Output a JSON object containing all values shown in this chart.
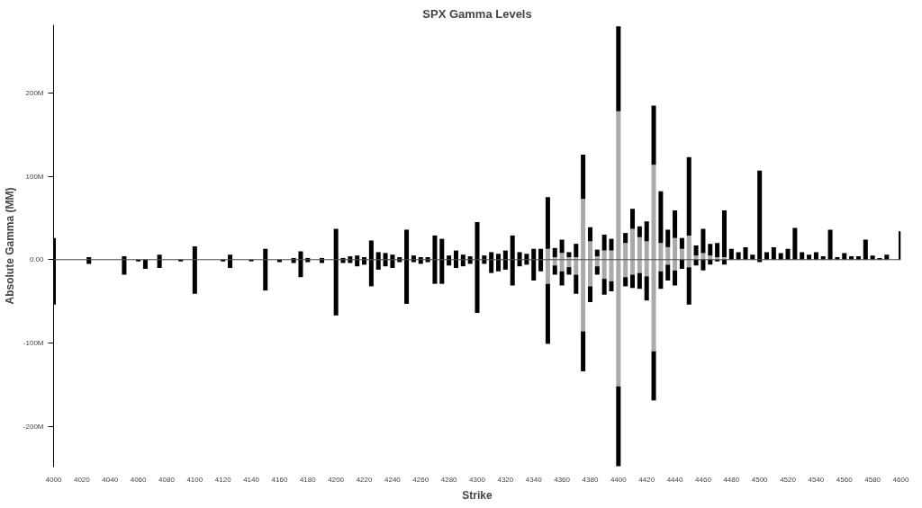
{
  "chart_data": {
    "type": "bar",
    "title": "SPX Gamma Levels",
    "xlabel": "Strike",
    "ylabel": "Absolute Gamma (MM)",
    "stacked": true,
    "grid": false,
    "x": [
      4000,
      4025,
      4050,
      4060,
      4065,
      4075,
      4090,
      4100,
      4120,
      4125,
      4140,
      4150,
      4160,
      4165,
      4170,
      4175,
      4180,
      4190,
      4200,
      4205,
      4210,
      4215,
      4220,
      4225,
      4230,
      4235,
      4240,
      4245,
      4250,
      4255,
      4260,
      4265,
      4270,
      4275,
      4280,
      4285,
      4290,
      4295,
      4300,
      4305,
      4310,
      4315,
      4320,
      4325,
      4330,
      4335,
      4340,
      4345,
      4350,
      4355,
      4360,
      4365,
      4370,
      4375,
      4380,
      4385,
      4390,
      4395,
      4400,
      4405,
      4410,
      4415,
      4420,
      4425,
      4430,
      4435,
      4440,
      4445,
      4450,
      4455,
      4460,
      4465,
      4470,
      4475,
      4480,
      4485,
      4490,
      4495,
      4500,
      4505,
      4510,
      4515,
      4520,
      4525,
      4530,
      4535,
      4540,
      4545,
      4550,
      4555,
      4560,
      4565,
      4570,
      4575,
      4580,
      4585,
      4590,
      4600
    ],
    "series": [
      {
        "color": "#aaaaaa",
        "values": [
          null,
          null,
          null,
          null,
          null,
          null,
          null,
          null,
          null,
          null,
          null,
          null,
          null,
          null,
          null,
          null,
          null,
          null,
          null,
          null,
          null,
          null,
          null,
          null,
          null,
          null,
          null,
          null,
          null,
          null,
          null,
          null,
          null,
          null,
          null,
          null,
          null,
          null,
          null,
          null,
          null,
          null,
          null,
          null,
          null,
          null,
          null,
          null,
          13,
          3,
          8,
          3,
          3,
          73,
          22,
          4,
          11,
          11,
          178,
          20,
          37,
          27,
          22,
          114,
          20,
          15,
          26,
          13,
          29,
          5,
          8,
          5,
          3,
          3,
          null,
          null,
          null,
          null,
          null,
          null,
          null,
          null,
          null,
          null,
          null,
          null,
          null,
          null,
          null,
          null,
          null,
          null,
          null,
          null,
          null,
          null,
          null,
          null
        ]
      },
      {
        "color": "#000000",
        "values": [
          26,
          3,
          4,
          null,
          null,
          6,
          null,
          16,
          null,
          6,
          null,
          13,
          null,
          null,
          2,
          10,
          2,
          2,
          37,
          2,
          4,
          5,
          3,
          23,
          9,
          8,
          6,
          3,
          36,
          5,
          3,
          3,
          29,
          25,
          5,
          11,
          6,
          4,
          45,
          5,
          9,
          7,
          11,
          29,
          9,
          7,
          13,
          13,
          62,
          11,
          16,
          6,
          16,
          53,
          17,
          8,
          19,
          14,
          102,
          12,
          24,
          13,
          24,
          71,
          62,
          21,
          33,
          13,
          94,
          12,
          29,
          14,
          17,
          56,
          13,
          9,
          15,
          6,
          107,
          9,
          15,
          8,
          13,
          38,
          9,
          6,
          9,
          4,
          36,
          3,
          8,
          4,
          4,
          24,
          5,
          2,
          6,
          34
        ]
      },
      {
        "color": "#aaaaaa",
        "values": [
          null,
          null,
          null,
          null,
          null,
          null,
          null,
          null,
          null,
          null,
          null,
          null,
          null,
          null,
          null,
          null,
          null,
          null,
          null,
          null,
          null,
          null,
          null,
          null,
          null,
          null,
          null,
          null,
          null,
          null,
          null,
          null,
          null,
          null,
          null,
          null,
          null,
          null,
          null,
          null,
          null,
          null,
          null,
          null,
          null,
          null,
          null,
          null,
          -29,
          -7,
          -14,
          -9,
          -18,
          -86,
          -32,
          -8,
          -23,
          -26,
          -152,
          -21,
          -18,
          -16,
          -20,
          -110,
          -14,
          -6,
          -13,
          null,
          -9,
          null,
          null,
          null,
          null,
          null,
          null,
          null,
          null,
          null,
          null,
          null,
          null,
          null,
          null,
          null,
          null,
          null,
          null,
          null,
          null,
          null,
          null,
          null,
          null,
          null,
          null,
          null,
          null,
          null
        ]
      },
      {
        "color": "#000000",
        "values": [
          -54,
          -5,
          -18,
          -2,
          -11,
          -10,
          -2,
          -41,
          -2,
          -10,
          -2,
          -37,
          -3,
          null,
          -4,
          -21,
          -3,
          -4,
          -67,
          -4,
          -4,
          -8,
          -6,
          -32,
          -12,
          -8,
          -10,
          -3,
          -53,
          -3,
          -5,
          -3,
          -29,
          -29,
          -7,
          -10,
          -8,
          -5,
          -64,
          -5,
          -16,
          -14,
          -12,
          -31,
          -8,
          -6,
          -25,
          -14,
          -72,
          -11,
          -17,
          -9,
          -23,
          -48,
          -19,
          -10,
          -19,
          -12,
          -96,
          -11,
          -16,
          -19,
          -29,
          -59,
          -21,
          -19,
          -18,
          -11,
          -45,
          -7,
          -13,
          -6,
          -2,
          -6,
          null,
          null,
          null,
          null,
          -3,
          null,
          null,
          null,
          null,
          null,
          null,
          null,
          null,
          null,
          null,
          null,
          null,
          null,
          null,
          null,
          null,
          null,
          null,
          null
        ]
      }
    ],
    "xlim": [
      4000,
      4600
    ],
    "xticks": [
      4000,
      4020,
      4040,
      4060,
      4080,
      4100,
      4120,
      4140,
      4160,
      4180,
      4200,
      4220,
      4240,
      4260,
      4280,
      4300,
      4320,
      4340,
      4360,
      4380,
      4400,
      4420,
      4440,
      4460,
      4480,
      4500,
      4520,
      4540,
      4560,
      4580,
      4600
    ],
    "ylim": [
      -249,
      282
    ],
    "yticks": [
      {
        "value": -200,
        "label": "-200M"
      },
      {
        "value": -100,
        "label": "-100M"
      },
      {
        "value": 0,
        "label": "0.00"
      },
      {
        "value": 100,
        "label": "100M"
      },
      {
        "value": 200,
        "label": "200M"
      }
    ],
    "ref_lines": [
      {
        "axis": "y",
        "value": 0,
        "color": "#444444"
      }
    ]
  }
}
